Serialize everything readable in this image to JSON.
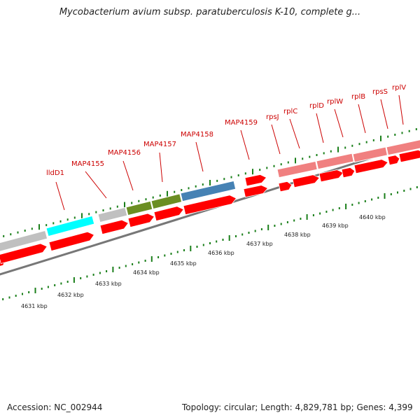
{
  "map": {
    "title": "Mycobacterium avium subsp. paratuberculosis K-10, complete g...",
    "scale_labels": [
      "4631 kbp",
      "4632 kbp",
      "4633 kbp",
      "4634 kbp",
      "4635 kbp",
      "4636 kbp",
      "4637 kbp",
      "4638 kbp",
      "4639 kbp",
      "4640 kbp"
    ],
    "gene_labels": [
      "lldD1",
      "MAP4155",
      "MAP4156",
      "MAP4157",
      "MAP4158",
      "MAP4159",
      "rpsJ",
      "rplC",
      "rplD",
      "rplW",
      "rplB",
      "rpsS",
      "rplV"
    ]
  },
  "footer": {
    "accession": "Accession: NC_002944",
    "summary": "Topology: circular; Length: 4,829,781 bp; Genes: 4,399"
  },
  "colors": {
    "backbone": "#777777",
    "gene_red": "#ff0000",
    "gene_grey": "#c0c0c0",
    "gene_cyan": "#00ffff",
    "gene_olive": "#6b8e23",
    "gene_steelblue": "#4682b4",
    "gene_pink": "#f08080",
    "tick_green": "#1a7f1a",
    "label_red": "#cc0000"
  }
}
